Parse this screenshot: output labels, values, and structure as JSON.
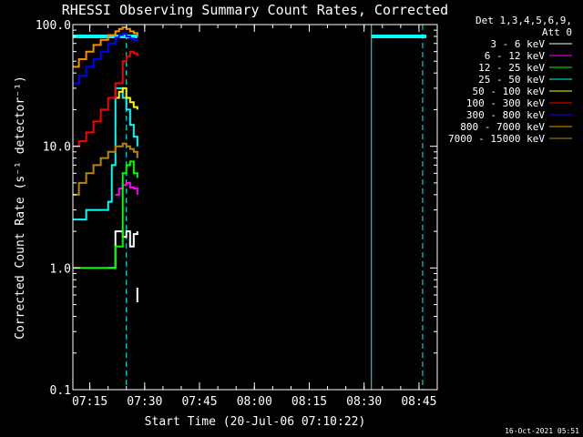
{
  "chart_data": {
    "type": "line",
    "title": "RHESSI Observing Summary Count Rates, Corrected",
    "xlabel": "Start Time (20-Jul-06 07:10:22)",
    "ylabel": "Corrected Count Rate (s⁻¹ detector⁻¹)",
    "yscale": "log",
    "ylim": [
      0.1,
      100.0
    ],
    "y_ticks": [
      "0.1",
      "1.0",
      "10.0",
      "100.0"
    ],
    "xlim": [
      "07:10:22",
      "08:50:00"
    ],
    "x_ticks": [
      "07:15",
      "07:30",
      "07:45",
      "08:00",
      "08:15",
      "08:30",
      "08:45"
    ],
    "detectors": "Det 1,3,4,5,6,9,",
    "attenuator": "Att 0",
    "footer_date": "16-Oct-2021 05:51",
    "legend_position": "top-right",
    "series": [
      {
        "name": "3 - 6 keV",
        "color": "#ffffff",
        "x": [
          "07:20",
          "07:22",
          "07:24",
          "07:25",
          "07:26",
          "07:27",
          "07:28"
        ],
        "y": [
          1.0,
          2.0,
          1.8,
          2.0,
          1.5,
          1.9,
          2.0
        ]
      },
      {
        "name": "6 - 12 keV",
        "color": "#ff00ff",
        "x": [
          "07:22",
          "07:23",
          "07:24",
          "07:25",
          "07:26",
          "07:27",
          "07:28"
        ],
        "y": [
          4.0,
          4.5,
          4.8,
          5.0,
          4.6,
          4.5,
          4.0
        ]
      },
      {
        "name": "12 - 25 keV",
        "color": "#00ff00",
        "x": [
          "07:10",
          "07:15",
          "07:18",
          "07:20",
          "07:22",
          "07:24",
          "07:25",
          "07:26",
          "07:27",
          "07:28"
        ],
        "y": [
          1.0,
          1.0,
          1.0,
          1.0,
          1.5,
          6.0,
          7.0,
          7.5,
          6.0,
          5.5
        ]
      },
      {
        "name": "25 - 50 keV",
        "color": "#00ffff",
        "x": [
          "07:10",
          "07:12",
          "07:14",
          "07:16",
          "07:18",
          "07:20",
          "07:21",
          "07:22",
          "07:23",
          "07:24",
          "07:25",
          "07:26",
          "07:27",
          "07:28"
        ],
        "y": [
          2.5,
          2.5,
          3.0,
          3.0,
          3.0,
          3.5,
          7.0,
          30.0,
          30.0,
          25.0,
          20.0,
          15.0,
          12.0,
          10.0
        ]
      },
      {
        "name": "50 - 100 keV",
        "color": "#ffff00",
        "x": [
          "07:22",
          "07:23",
          "07:24",
          "07:25",
          "07:26",
          "07:27",
          "07:28"
        ],
        "y": [
          25.0,
          28.0,
          30.0,
          25.0,
          23.0,
          21.0,
          20.0
        ]
      },
      {
        "name": "100 - 300 keV",
        "color": "#ff0000",
        "x": [
          "07:10",
          "07:12",
          "07:14",
          "07:16",
          "07:18",
          "07:20",
          "07:22",
          "07:24",
          "07:25",
          "07:26",
          "07:27",
          "07:28"
        ],
        "y": [
          10.0,
          11.0,
          13.0,
          16.0,
          20.0,
          25.0,
          33.0,
          50.0,
          55.0,
          60.0,
          58.0,
          55.0
        ]
      },
      {
        "name": "300 - 800 keV",
        "color": "#0000ff",
        "x": [
          "07:10",
          "07:12",
          "07:14",
          "07:16",
          "07:18",
          "07:20",
          "07:22",
          "07:23",
          "07:24",
          "07:25",
          "07:26",
          "07:27",
          "07:28"
        ],
        "y": [
          33.0,
          38.0,
          45.0,
          52.0,
          60.0,
          70.0,
          78.0,
          82.0,
          85.0,
          80.0,
          77.0,
          75.0,
          72.0
        ]
      },
      {
        "name": "800 - 7000 keV",
        "color": "#ff8c00",
        "x": [
          "07:10",
          "07:12",
          "07:14",
          "07:16",
          "07:18",
          "07:20",
          "07:22",
          "07:23",
          "07:24",
          "07:25",
          "07:26",
          "07:27",
          "07:28"
        ],
        "y": [
          45.0,
          52.0,
          60.0,
          68.0,
          75.0,
          82.0,
          88.0,
          92.0,
          95.0,
          92.0,
          88.0,
          85.0,
          80.0
        ]
      },
      {
        "name": "7000 - 15000 keV",
        "color": "#b8860b",
        "x": [
          "07:10",
          "07:12",
          "07:14",
          "07:16",
          "07:18",
          "07:20",
          "07:22",
          "07:24",
          "07:25",
          "07:26",
          "07:27",
          "07:28"
        ],
        "y": [
          4.0,
          5.0,
          6.0,
          7.0,
          8.0,
          9.0,
          10.0,
          10.5,
          10.0,
          9.5,
          9.0,
          8.0
        ]
      }
    ],
    "extra_markers": [
      {
        "color": "#ffffff",
        "x": "07:28",
        "y": 0.6
      }
    ],
    "mode_bars": [
      {
        "color": "#00ffff",
        "x0": "07:10:22",
        "x1": "07:28",
        "y": 80.0
      },
      {
        "color": "#00ffff",
        "x0": "08:32",
        "x1": "08:47",
        "y": 80.0
      }
    ],
    "vertical_lines": [
      {
        "color": "#00ffff",
        "x": "07:10:22",
        "style": "solid"
      },
      {
        "color": "#00ffff",
        "x": "07:25",
        "style": "dashed"
      },
      {
        "color": "#00ffff",
        "x": "08:32",
        "style": "solid"
      },
      {
        "color": "#00ffff",
        "x": "08:46",
        "style": "dashed"
      }
    ]
  }
}
